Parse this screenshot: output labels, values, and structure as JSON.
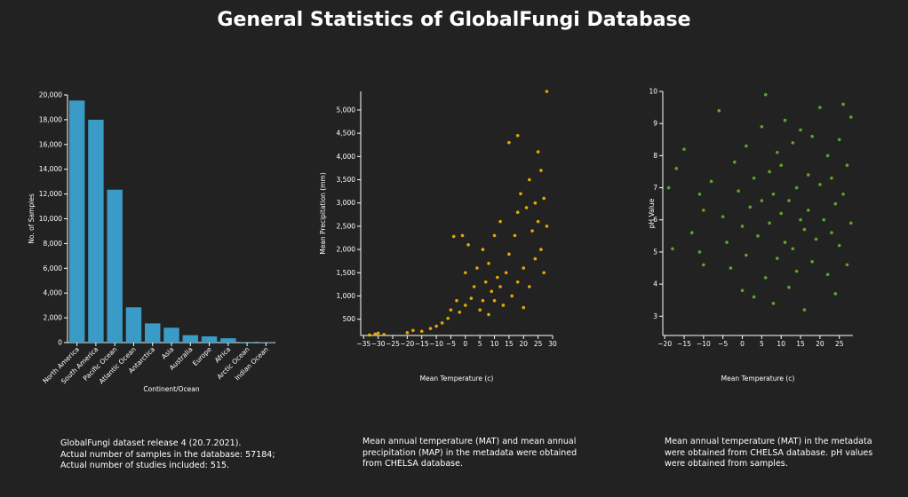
{
  "page": {
    "title": "General Statistics of GlobalFungi Database",
    "background": "#222222"
  },
  "chart_data": [
    {
      "type": "bar",
      "title": "",
      "xlabel": "Continent/Ocean",
      "ylabel": "No. of Samples",
      "color": "#3b9bc7",
      "categories": [
        "North America",
        "South America",
        "Pacific Ocean",
        "Atlantic Ocean",
        "Antarctica",
        "Asia",
        "Australia",
        "Europe",
        "Africa",
        "Arctic Ocean",
        "Indian Ocean"
      ],
      "values": [
        19550,
        18000,
        12350,
        2850,
        1550,
        1200,
        600,
        500,
        350,
        50,
        30
      ],
      "ylim": [
        0,
        20000
      ],
      "yticks": [
        0,
        2000,
        4000,
        6000,
        8000,
        10000,
        12000,
        14000,
        16000,
        18000,
        20000
      ],
      "ytick_labels": [
        "0",
        "2,000",
        "4,000",
        "6,000",
        "8,000",
        "10,000",
        "12,000",
        "14,000",
        "16,000",
        "18,000",
        "20,000"
      ]
    },
    {
      "type": "scatter",
      "xlabel": "Mean Temperature (c)",
      "ylabel": "Mean Precipitation (mm)",
      "color": "#f5b800",
      "xlim": [
        -36,
        30
      ],
      "ylim": [
        150,
        5400
      ],
      "xticks": [
        -35,
        -30,
        -25,
        -20,
        -15,
        -10,
        -5,
        0,
        5,
        10,
        15,
        20,
        25,
        30
      ],
      "xtick_labels": [
        "−35",
        "−30",
        "−25",
        "−20",
        "−15",
        "−10",
        "−5",
        "0",
        "5",
        "10",
        "15",
        "20",
        "25",
        "30"
      ],
      "yticks": [
        500,
        1000,
        1500,
        2000,
        2500,
        3000,
        3500,
        4000,
        4500,
        5000
      ],
      "ytick_labels": [
        "500",
        "1,000",
        "1,500",
        "2,000",
        "2,500",
        "3,000",
        "3,500",
        "4,000",
        "4,500",
        "5,000"
      ],
      "points": [
        [
          -33,
          160
        ],
        [
          -31,
          180
        ],
        [
          -30,
          200
        ],
        [
          -28,
          170
        ],
        [
          -20,
          210
        ],
        [
          -18,
          260
        ],
        [
          -15,
          240
        ],
        [
          -12,
          300
        ],
        [
          -10,
          350
        ],
        [
          -8,
          420
        ],
        [
          -6,
          520
        ],
        [
          -5,
          700
        ],
        [
          -4,
          2280
        ],
        [
          -3,
          900
        ],
        [
          -2,
          650
        ],
        [
          -1,
          2300
        ],
        [
          0,
          800
        ],
        [
          0,
          1500
        ],
        [
          1,
          2100
        ],
        [
          2,
          950
        ],
        [
          3,
          1200
        ],
        [
          4,
          1600
        ],
        [
          5,
          700
        ],
        [
          6,
          900
        ],
        [
          6,
          2000
        ],
        [
          7,
          1300
        ],
        [
          8,
          1700
        ],
        [
          8,
          600
        ],
        [
          9,
          1100
        ],
        [
          10,
          2300
        ],
        [
          10,
          900
        ],
        [
          11,
          1400
        ],
        [
          12,
          1200
        ],
        [
          12,
          2600
        ],
        [
          13,
          800
        ],
        [
          14,
          1500
        ],
        [
          15,
          1900
        ],
        [
          15,
          4300
        ],
        [
          16,
          1000
        ],
        [
          17,
          2300
        ],
        [
          18,
          2800
        ],
        [
          18,
          1300
        ],
        [
          19,
          3200
        ],
        [
          20,
          1600
        ],
        [
          21,
          2900
        ],
        [
          22,
          3500
        ],
        [
          22,
          1200
        ],
        [
          23,
          2400
        ],
        [
          24,
          3000
        ],
        [
          24,
          1800
        ],
        [
          25,
          4100
        ],
        [
          25,
          2600
        ],
        [
          26,
          3700
        ],
        [
          26,
          2000
        ],
        [
          27,
          3100
        ],
        [
          27,
          1500
        ],
        [
          28,
          2500
        ],
        [
          28,
          5400
        ],
        [
          20,
          750
        ],
        [
          18,
          4450
        ]
      ]
    },
    {
      "type": "scatter",
      "xlabel": "Mean Temperature (c)",
      "ylabel": "pH Value",
      "color": "#6fd12e",
      "xlim": [
        -20.5,
        28.5
      ],
      "ylim": [
        2.4,
        10
      ],
      "xticks": [
        -20,
        -15,
        -10,
        -5,
        0,
        5,
        10,
        15,
        20,
        25
      ],
      "xtick_labels": [
        "−20",
        "−15",
        "−10",
        "−5",
        "0",
        "5",
        "10",
        "15",
        "20",
        "25"
      ],
      "yticks": [
        3,
        4,
        5,
        6,
        7,
        8,
        9,
        10
      ],
      "ytick_labels": [
        "3",
        "4",
        "5",
        "6",
        "7",
        "8",
        "9",
        "10"
      ],
      "points": [
        [
          -19,
          7.0
        ],
        [
          -18,
          5.1
        ],
        [
          -17,
          7.6
        ],
        [
          -15,
          8.2
        ],
        [
          -13,
          5.6
        ],
        [
          -11,
          6.8
        ],
        [
          -11,
          5.0
        ],
        [
          -10,
          6.3
        ],
        [
          -10,
          4.6
        ],
        [
          -8,
          7.2
        ],
        [
          -6,
          9.4
        ],
        [
          -5,
          6.1
        ],
        [
          -4,
          5.3
        ],
        [
          -3,
          4.5
        ],
        [
          -2,
          7.8
        ],
        [
          -1,
          6.9
        ],
        [
          0,
          5.8
        ],
        [
          0,
          3.8
        ],
        [
          1,
          8.3
        ],
        [
          1,
          4.9
        ],
        [
          2,
          6.4
        ],
        [
          3,
          7.3
        ],
        [
          3,
          3.6
        ],
        [
          4,
          5.5
        ],
        [
          5,
          8.9
        ],
        [
          5,
          6.6
        ],
        [
          6,
          4.2
        ],
        [
          6,
          9.9
        ],
        [
          7,
          7.5
        ],
        [
          7,
          5.9
        ],
        [
          8,
          3.4
        ],
        [
          8,
          6.8
        ],
        [
          9,
          8.1
        ],
        [
          9,
          4.8
        ],
        [
          10,
          6.2
        ],
        [
          10,
          7.7
        ],
        [
          11,
          5.3
        ],
        [
          11,
          9.1
        ],
        [
          12,
          3.9
        ],
        [
          12,
          6.6
        ],
        [
          13,
          8.4
        ],
        [
          13,
          5.1
        ],
        [
          14,
          7.0
        ],
        [
          14,
          4.4
        ],
        [
          15,
          6.0
        ],
        [
          15,
          8.8
        ],
        [
          16,
          5.7
        ],
        [
          16,
          3.2
        ],
        [
          17,
          7.4
        ],
        [
          17,
          6.3
        ],
        [
          18,
          8.6
        ],
        [
          18,
          4.7
        ],
        [
          19,
          5.4
        ],
        [
          20,
          7.1
        ],
        [
          20,
          9.5
        ],
        [
          21,
          6.0
        ],
        [
          22,
          4.3
        ],
        [
          22,
          8.0
        ],
        [
          23,
          5.6
        ],
        [
          23,
          7.3
        ],
        [
          24,
          6.5
        ],
        [
          24,
          3.7
        ],
        [
          25,
          8.5
        ],
        [
          25,
          5.2
        ],
        [
          26,
          9.6
        ],
        [
          26,
          6.8
        ],
        [
          27,
          4.6
        ],
        [
          27,
          7.7
        ],
        [
          28,
          5.9
        ],
        [
          28,
          9.2
        ]
      ]
    }
  ],
  "captions": {
    "bar": [
      "GlobalFungi dataset release 4 (20.7.2021).",
      "Actual number of samples in the database: 57184;",
      "Actual number of studies included: 515."
    ],
    "precip": [
      "Mean annual temperature (MAT) and mean annual",
      "precipitation (MAP) in the metadata were obtained",
      "from CHELSA database."
    ],
    "ph": [
      "Mean annual temperature (MAT) in the metadata",
      "were obtained from CHELSA database. pH values",
      "were obtained from samples."
    ]
  }
}
